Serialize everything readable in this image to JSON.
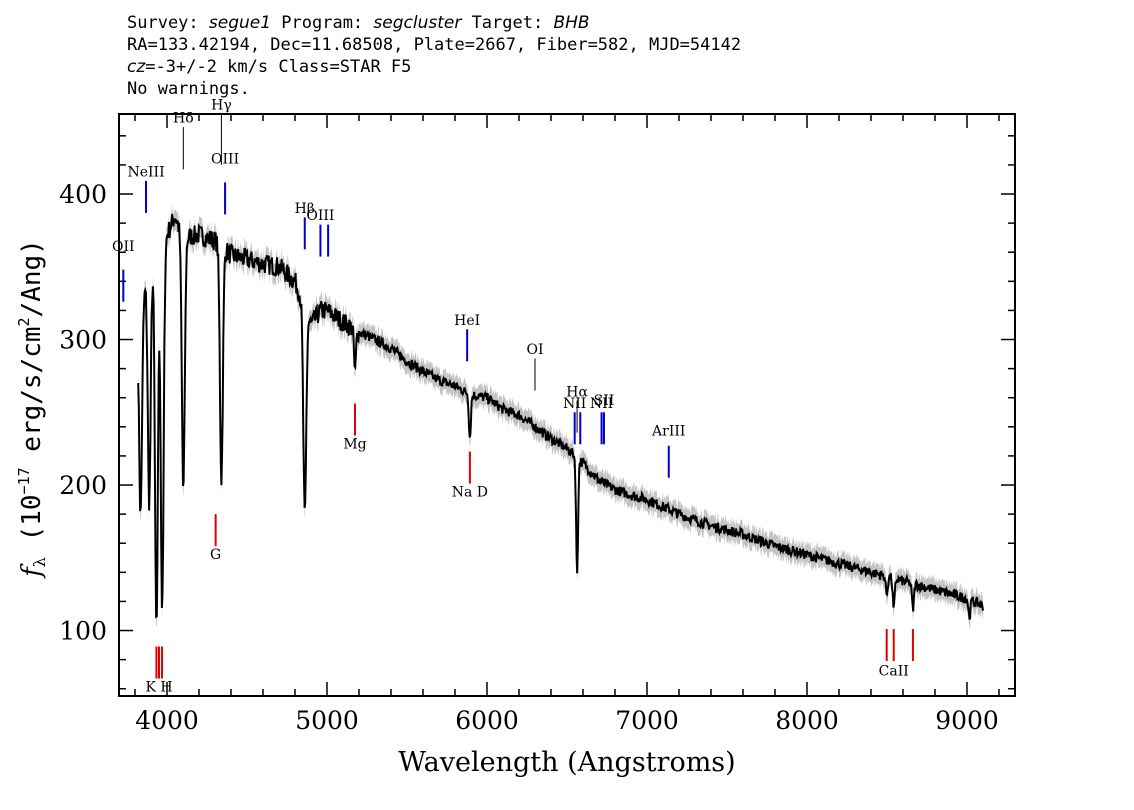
{
  "header": {
    "line1": {
      "survey_label": "Survey: ",
      "survey": "segue1",
      "program_label": " Program: ",
      "program": "segcluster",
      "target_label": " Target: ",
      "target": "BHB"
    },
    "line2": "RA=133.42194, Dec=11.68508, Plate=2667, Fiber=582, MJD=54142",
    "line3": {
      "cz": "cz",
      "cz_value": "=-3+/-2",
      "cz_unit": " km/s Class=STAR F5"
    },
    "line4": "No warnings."
  },
  "chart_data": {
    "type": "line",
    "title": "",
    "xlabel": "Wavelength (Angstroms)",
    "ylabel": "f_λ (10^-17 erg/s/cm^2/Ang)",
    "ylabel_parts": {
      "f": "f",
      "lambda_sub": "λ",
      "open": " (10",
      "exp": "−17",
      "mid": " erg/s/cm",
      "exp2": "2",
      "close": "/Ang)"
    },
    "xlim": [
      3700,
      9300
    ],
    "ylim": [
      55,
      455
    ],
    "xticks": [
      4000,
      5000,
      6000,
      7000,
      8000,
      9000
    ],
    "yticks": [
      100,
      200,
      300,
      400
    ],
    "grid": false,
    "colors": {
      "spectrum": "#000000",
      "error_band": "#c4c4c4",
      "emission": "#0000cc",
      "absorption": "#dd0000",
      "label_tick": "#000000"
    },
    "continuum": {
      "x": [
        3820,
        3880,
        3930,
        4000,
        4050,
        4100,
        4200,
        4300,
        4400,
        4500,
        4600,
        4700,
        4800,
        4900,
        4960,
        5000,
        5100,
        5200,
        5300,
        5400,
        5500,
        5600,
        5700,
        5800,
        5900,
        6000,
        6100,
        6200,
        6300,
        6400,
        6500,
        6600,
        6700,
        6800,
        6900,
        7000,
        7200,
        7400,
        7600,
        7800,
        8000,
        8200,
        8400,
        8600,
        8800,
        9000,
        9100
      ],
      "y": [
        312,
        345,
        362,
        372,
        385,
        370,
        372,
        368,
        358,
        355,
        352,
        350,
        340,
        310,
        320,
        320,
        312,
        305,
        300,
        294,
        285,
        278,
        272,
        268,
        262,
        260,
        252,
        248,
        240,
        232,
        225,
        215,
        203,
        197,
        193,
        190,
        180,
        172,
        166,
        158,
        152,
        146,
        140,
        134,
        128,
        122,
        117
      ]
    },
    "absorption_lines": {
      "x": [
        3835,
        3889,
        3934,
        3970,
        4102,
        4340,
        4861,
        5175,
        5893,
        6563,
        8498,
        8542,
        8662,
        9015
      ],
      "depth": [
        140,
        160,
        265,
        255,
        175,
        160,
        145,
        30,
        30,
        80,
        12,
        22,
        18,
        12
      ]
    },
    "lines": [
      {
        "label": "Hδ",
        "wavelength": 4102,
        "kind": "label",
        "y_top": 446,
        "y_bottom": 417,
        "text_y": 449
      },
      {
        "label": "Hγ",
        "wavelength": 4340,
        "kind": "label",
        "y_top": 455,
        "y_bottom": 420,
        "text_y": 458
      },
      {
        "label": "OIII",
        "wavelength": 4363,
        "kind": "emission",
        "y_top": 408,
        "y_bottom": 386,
        "text_y": 421
      },
      {
        "label": "NeIII",
        "wavelength": 3869,
        "kind": "emission",
        "y_top": 409,
        "y_bottom": 387,
        "text_y": 412
      },
      {
        "label": "OII",
        "wavelength": 3727,
        "kind": "emission",
        "y_top": 348,
        "y_bottom": 326,
        "text_y": 361
      },
      {
        "label": "Hβ",
        "wavelength": 4861,
        "kind": "emission",
        "y_top": 384,
        "y_bottom": 362,
        "text_y": 387
      },
      {
        "label": "OIII",
        "wavelength": 4959,
        "kind": "emission",
        "y_top": 379,
        "y_bottom": 357,
        "text_y": 382
      },
      {
        "label": "OIII",
        "wavelength": 5007,
        "kind": "emission",
        "y_top": 379,
        "y_bottom": 357,
        "text_y": -1
      },
      {
        "label": "HeI",
        "wavelength": 5876,
        "kind": "emission",
        "y_top": 307,
        "y_bottom": 285,
        "text_y": 310
      },
      {
        "label": "OI",
        "wavelength": 6300,
        "kind": "label",
        "y_top": 287,
        "y_bottom": 265,
        "text_y": 290
      },
      {
        "label": "Hα",
        "wavelength": 6563,
        "kind": "label",
        "y_top": 258,
        "y_bottom": 236,
        "text_y": 261
      },
      {
        "label": "NII",
        "wavelength": 6548,
        "kind": "emission",
        "y_top": 250,
        "y_bottom": 228,
        "text_y": 253
      },
      {
        "label": "NII",
        "wavelength": 6583,
        "kind": "emission",
        "y_top": 250,
        "y_bottom": 228,
        "text_y": -1
      },
      {
        "label": "NII",
        "wavelength": 6716,
        "kind": "emission",
        "y_top": 250,
        "y_bottom": 228,
        "text_y": 253
      },
      {
        "label": "SII",
        "wavelength": 6731,
        "kind": "emission",
        "y_top": 250,
        "y_bottom": 228,
        "text_y": 255
      },
      {
        "label": "ArIII",
        "wavelength": 7136,
        "kind": "emission",
        "y_top": 227,
        "y_bottom": 205,
        "text_y": 234
      },
      {
        "label": "Mg",
        "wavelength": 5175,
        "kind": "absorption",
        "y_top": 256,
        "y_bottom": 234,
        "text_y": 225
      },
      {
        "label": "Na D",
        "wavelength": 5893,
        "kind": "absorption",
        "y_top": 223,
        "y_bottom": 201,
        "text_y": 192
      },
      {
        "label": "G",
        "wavelength": 4304,
        "kind": "absorption",
        "y_top": 180,
        "y_bottom": 158,
        "text_y": 149
      },
      {
        "label": "K H",
        "wavelength": 3950,
        "kind": "absorption",
        "y_top": 89,
        "y_bottom": 67,
        "text_y": 58
      },
      {
        "label": "",
        "wavelength": 3934,
        "kind": "absorption",
        "y_top": 89,
        "y_bottom": 67,
        "text_y": -1
      },
      {
        "label": "",
        "wavelength": 3969,
        "kind": "absorption",
        "y_top": 89,
        "y_bottom": 67,
        "text_y": -1
      },
      {
        "label": "CaII",
        "wavelength": 8542,
        "kind": "absorption",
        "y_top": 101,
        "y_bottom": 79,
        "text_y": 69
      },
      {
        "label": "",
        "wavelength": 8498,
        "kind": "absorption",
        "y_top": 101,
        "y_bottom": 79,
        "text_y": -1
      },
      {
        "label": "",
        "wavelength": 8662,
        "kind": "absorption",
        "y_top": 101,
        "y_bottom": 79,
        "text_y": -1
      }
    ]
  }
}
